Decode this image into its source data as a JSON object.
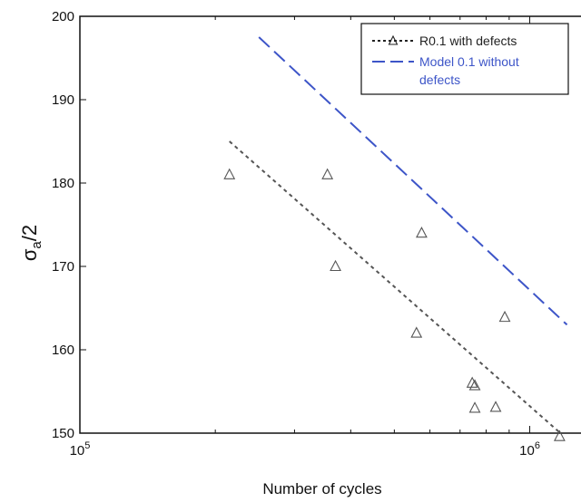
{
  "chart_data": {
    "type": "scatter",
    "xscale": "log",
    "xlabel": "Number of cycles",
    "ylabel_main": "σ",
    "ylabel_sub": "a",
    "ylabel_suffix": "/2",
    "xlim": [
      100000,
      1300000
    ],
    "ylim": [
      150,
      200
    ],
    "grid": false,
    "legend_position": "top-right",
    "yticks": [
      {
        "value": 150,
        "label": "150"
      },
      {
        "value": 160,
        "label": "160"
      },
      {
        "value": 170,
        "label": "170"
      },
      {
        "value": 180,
        "label": "180"
      },
      {
        "value": 190,
        "label": "190"
      },
      {
        "value": 200,
        "label": "200"
      }
    ],
    "xticks": [
      {
        "value": 100000,
        "base": "10",
        "exp": "5"
      },
      {
        "value": 1000000,
        "base": "10",
        "exp": "6"
      }
    ],
    "series": [
      {
        "name": "R0.1 with defects",
        "kind": "markers",
        "color": "#555555",
        "x": [
          215000,
          355000,
          370000,
          560000,
          575000,
          745000,
          755000,
          755000,
          840000,
          880000,
          1165000
        ],
        "y": [
          181,
          181,
          170,
          162,
          174,
          156,
          155.7,
          153,
          153.1,
          163.9,
          149.6
        ]
      },
      {
        "name": "R0.1 with defects",
        "kind": "fit-line",
        "color": "#555555",
        "x": [
          215000,
          1170000
        ],
        "y": [
          185,
          150
        ]
      },
      {
        "name": "Model 0.1 without defects",
        "kind": "fit-line",
        "color": "#3d55c8",
        "x": [
          250000,
          1210000
        ],
        "y": [
          197.5,
          163
        ]
      }
    ],
    "legend": [
      {
        "label": "R0.1 with defects",
        "color": "#222222",
        "style": "dotted-marker"
      },
      {
        "label_line1": "Model 0.1 without",
        "label_line2": "defects",
        "color": "#3d55c8",
        "style": "dashed"
      }
    ]
  }
}
